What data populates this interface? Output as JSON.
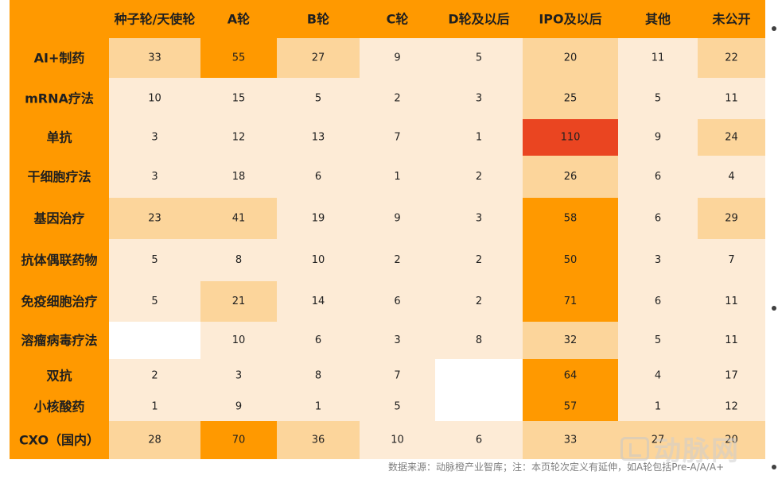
{
  "chart_data": {
    "type": "heatmap",
    "columns": [
      "种子轮/天使轮",
      "A轮",
      "B轮",
      "C轮",
      "D轮及以后",
      "IPO及以后",
      "其他",
      "未公开"
    ],
    "rows": [
      "AI+制药",
      "mRNA疗法",
      "单抗",
      "干细胞疗法",
      "基因治疗",
      "抗体偶联药物",
      "免疫细胞治疗",
      "溶瘤病毒疗法",
      "双抗",
      "小核酸药",
      "CXO（国内）"
    ],
    "values": [
      [
        33,
        55,
        27,
        9,
        5,
        20,
        11,
        22
      ],
      [
        10,
        15,
        5,
        2,
        3,
        25,
        5,
        11
      ],
      [
        3,
        12,
        13,
        7,
        1,
        110,
        9,
        24
      ],
      [
        3,
        18,
        6,
        1,
        2,
        26,
        6,
        4
      ],
      [
        23,
        41,
        19,
        9,
        3,
        58,
        6,
        29
      ],
      [
        5,
        8,
        10,
        2,
        2,
        50,
        3,
        7
      ],
      [
        5,
        21,
        14,
        6,
        2,
        71,
        6,
        11
      ],
      [
        null,
        10,
        6,
        3,
        8,
        32,
        5,
        11
      ],
      [
        2,
        3,
        8,
        7,
        null,
        64,
        4,
        17
      ],
      [
        1,
        9,
        1,
        5,
        null,
        57,
        1,
        12
      ],
      [
        28,
        70,
        36,
        10,
        6,
        33,
        27,
        20
      ]
    ],
    "colors": {
      "header": "#FF9900",
      "level_low": "#FDEBD6",
      "level_mid": "#FCD59B",
      "level_high": "#FF9900",
      "level_max": "#EA4521",
      "empty": "#FFFFFF"
    }
  },
  "footer": "数据来源：动脉橙产业智库；注：本页轮次定义有延伸，如A轮包括Pre-A/A/A+",
  "watermark": "动脉网"
}
